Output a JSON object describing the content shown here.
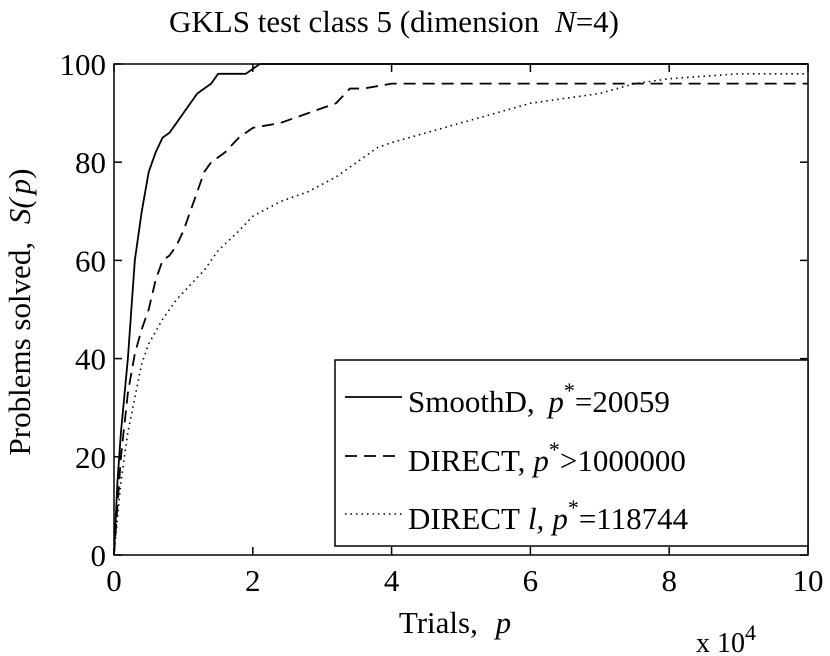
{
  "chart_data": {
    "type": "line",
    "title_main": "GKLS test class 5 (dimension",
    "title_var": "N",
    "title_tail": "=4)",
    "xlabel_text": "Trials,",
    "xlabel_var": "p",
    "ylabel_text": "Problems solved,",
    "ylabel_var": "S(",
    "ylabel_var2": "p",
    "ylabel_close": ")",
    "x_multiplier": "x 10",
    "x_multiplier_exp": "4",
    "xlim": [
      0,
      10
    ],
    "ylim": [
      0,
      100
    ],
    "xticks": [
      "0",
      "2",
      "4",
      "6",
      "8",
      "10"
    ],
    "yticks": [
      "0",
      "20",
      "40",
      "60",
      "80",
      "100"
    ],
    "legend_position": "bottom-right",
    "series": [
      {
        "name": "SmoothD",
        "legend_p": "p",
        "legend_star": "*",
        "legend_value": "=20059",
        "style": "solid",
        "x": [
          0,
          0.05,
          0.1,
          0.2,
          0.3,
          0.4,
          0.5,
          0.6,
          0.7,
          0.8,
          0.9,
          1.0,
          1.1,
          1.2,
          1.4,
          1.5,
          1.6,
          1.9,
          2.0,
          2.1
        ],
        "y": [
          0,
          15,
          25,
          40,
          60,
          70,
          78,
          82,
          85,
          86,
          88,
          90,
          92,
          94,
          96,
          98,
          98,
          98,
          99,
          100
        ]
      },
      {
        "name": "DIRECT,",
        "legend_p": "p",
        "legend_star": "*",
        "legend_value": ">1000000",
        "style": "dashed",
        "x": [
          0,
          0.1,
          0.2,
          0.3,
          0.4,
          0.5,
          0.6,
          0.7,
          0.8,
          0.9,
          1.0,
          1.1,
          1.2,
          1.3,
          1.4,
          1.6,
          1.8,
          2.0,
          2.4,
          2.8,
          3.2,
          3.4,
          3.6,
          4.0,
          5.0,
          6.0,
          7.0,
          8.0,
          9.0,
          10.0
        ],
        "y": [
          0,
          20,
          33,
          41,
          46,
          50,
          56,
          60,
          61,
          63,
          66,
          70,
          74,
          78,
          80,
          82,
          85,
          87,
          88,
          90,
          92,
          95,
          95,
          96,
          96,
          96,
          96,
          96,
          96,
          96
        ]
      },
      {
        "name": "DIRECT",
        "legend_italic": "l,",
        "legend_p": "p",
        "legend_star": "*",
        "legend_value": "=118744",
        "style": "dotted",
        "x": [
          0,
          0.1,
          0.2,
          0.3,
          0.4,
          0.5,
          0.7,
          0.9,
          1.1,
          1.3,
          1.5,
          1.8,
          2.0,
          2.4,
          2.8,
          3.2,
          3.5,
          3.8,
          4.0,
          4.5,
          5.0,
          5.5,
          6.0,
          6.5,
          7.0,
          7.5,
          8.0,
          9.0,
          10.0
        ],
        "y": [
          0,
          15,
          25,
          32,
          39,
          43,
          48,
          52,
          55,
          58,
          62,
          66,
          69,
          72,
          74,
          77,
          80,
          83,
          84,
          86,
          88,
          90,
          92,
          93,
          94,
          96,
          97,
          98,
          98
        ]
      }
    ]
  }
}
